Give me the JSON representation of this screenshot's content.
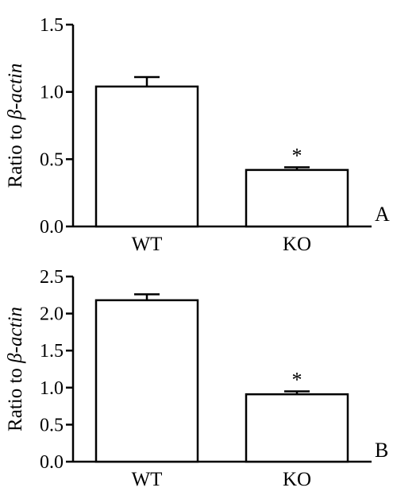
{
  "chart_data": [
    {
      "type": "bar",
      "panel_label": "A",
      "categories": [
        "WT",
        "KO"
      ],
      "values": [
        1.04,
        0.42
      ],
      "errors": [
        0.07,
        0.02
      ],
      "significance": [
        "",
        "*"
      ],
      "ylabel_prefix": "Ratio to ",
      "ylabel_italic": "β-actin",
      "ylim": [
        0,
        1.5
      ],
      "yticks": [
        "0.0",
        "0.5",
        "1.0",
        "1.5"
      ],
      "grid": false
    },
    {
      "type": "bar",
      "panel_label": "B",
      "categories": [
        "WT",
        "KO"
      ],
      "values": [
        2.18,
        0.91
      ],
      "errors": [
        0.08,
        0.04
      ],
      "significance": [
        "",
        "*"
      ],
      "ylabel_prefix": "Ratio to ",
      "ylabel_italic": "β-actin",
      "ylim": [
        0,
        2.5
      ],
      "yticks": [
        "0.0",
        "0.5",
        "1.0",
        "1.5",
        "2.0",
        "2.5"
      ],
      "grid": false
    }
  ],
  "colors": {
    "bar_fill": "#ffffff",
    "stroke": "#000000"
  }
}
